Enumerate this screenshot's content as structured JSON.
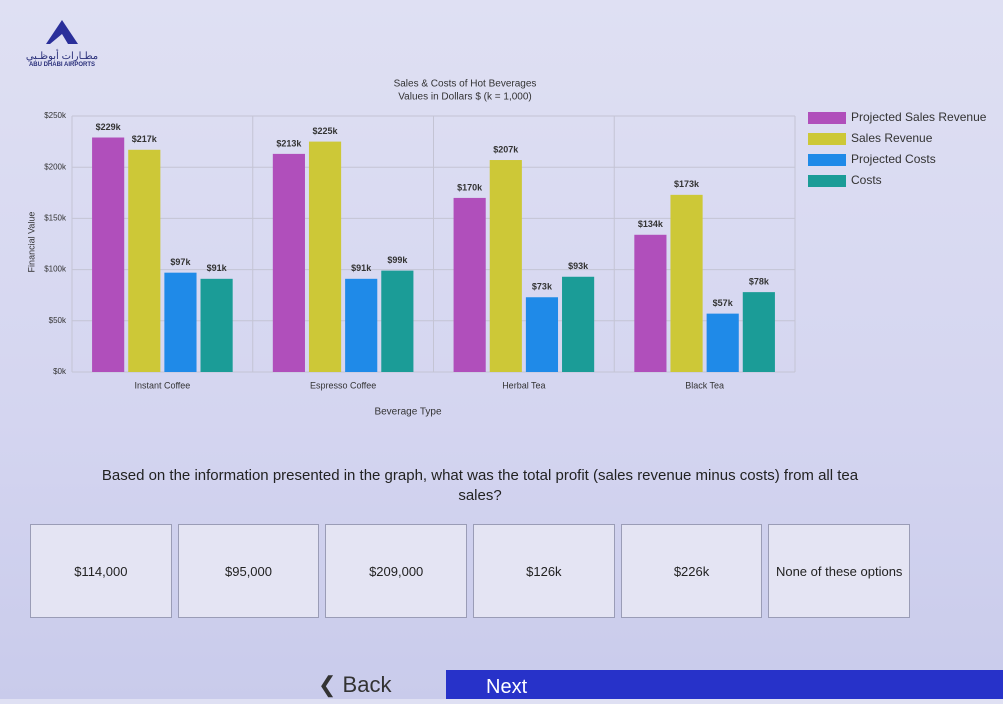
{
  "logo": {
    "arabic": "مطـارات أبوظـبي",
    "english": "ABU DHABI AIRPORTS"
  },
  "chart_data": {
    "type": "bar",
    "title": "Sales & Costs of Hot Beverages",
    "subtitle": "Values in Dollars $ (k = 1,000)",
    "x_label": "Beverage Type",
    "y_label": "Financial Value",
    "categories": [
      "Instant Coffee",
      "Espresso Coffee",
      "Herbal Tea",
      "Black Tea"
    ],
    "series": [
      {
        "name": "Projected Sales Revenue",
        "color": "#b04fbb",
        "values": [
          229000,
          213000,
          170000,
          134000
        ],
        "value_labels": [
          "$229k",
          "$213k",
          "$170k",
          "$134k"
        ]
      },
      {
        "name": "Sales Revenue",
        "color": "#cdc837",
        "values": [
          217000,
          225000,
          207000,
          173000
        ],
        "value_labels": [
          "$217k",
          "$225k",
          "$207k",
          "$173k"
        ]
      },
      {
        "name": "Projected Costs",
        "color": "#1f8ae8",
        "values": [
          97000,
          91000,
          73000,
          57000
        ],
        "value_labels": [
          "$97k",
          "$91k",
          "$73k",
          "$57k"
        ]
      },
      {
        "name": "Costs",
        "color": "#1b9c97",
        "values": [
          91000,
          99000,
          93000,
          78000
        ],
        "value_labels": [
          "$91k",
          "$99k",
          "$93k",
          "$78k"
        ]
      }
    ],
    "ylim": [
      0,
      250000
    ],
    "yticks": [
      {
        "value": 0,
        "label": "$0k"
      },
      {
        "value": 50000,
        "label": "$50k"
      },
      {
        "value": 100000,
        "label": "$100k"
      },
      {
        "value": 150000,
        "label": "$150k"
      },
      {
        "value": 200000,
        "label": "$200k"
      },
      {
        "value": 250000,
        "label": "$250k"
      }
    ],
    "grid": true,
    "legend": "right"
  },
  "question": "Based on the information presented in the graph, what was the total profit (sales revenue minus costs) from all tea sales?",
  "options": [
    "$114,000",
    "$95,000",
    "$209,000",
    "$126k",
    "$226k",
    "None of these options"
  ],
  "nav": {
    "back": "Back",
    "next": "Next"
  }
}
